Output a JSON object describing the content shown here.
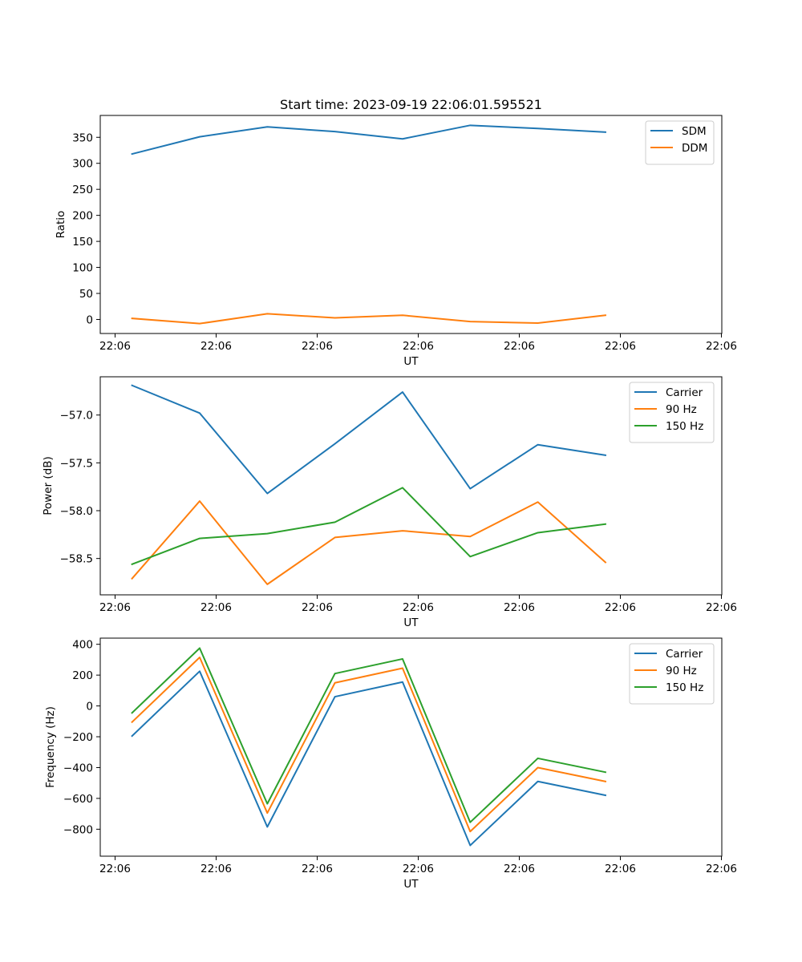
{
  "figure": {
    "title": "Start time: 2023-09-19 22:06:01.595521"
  },
  "chart_data": [
    {
      "type": "line",
      "title": "Start time: 2023-09-19 22:06:01.595521",
      "xlabel": "UT",
      "ylabel": "Ratio",
      "x_tick_labels": [
        "22:06",
        "22:06",
        "22:06",
        "22:06",
        "22:06",
        "22:06",
        "22:06"
      ],
      "y_ticks": [
        0,
        50,
        100,
        150,
        200,
        250,
        300,
        350
      ],
      "ylim": [
        -27,
        392
      ],
      "x": [
        0,
        1,
        2,
        3,
        4,
        5,
        6,
        7
      ],
      "xlim": [
        -0.47,
        8.72
      ],
      "legend_position": "top-right",
      "grid": false,
      "series": [
        {
          "name": "SDM",
          "color": "#1f77b4",
          "values": [
            318,
            351,
            370,
            361,
            347,
            373,
            367,
            360
          ]
        },
        {
          "name": "DDM",
          "color": "#ff7f0e",
          "values": [
            2,
            -8,
            11,
            3,
            8,
            -4,
            -7,
            8
          ]
        }
      ]
    },
    {
      "type": "line",
      "title": "",
      "xlabel": "UT",
      "ylabel": "Power (dB)",
      "x_tick_labels": [
        "22:06",
        "22:06",
        "22:06",
        "22:06",
        "22:06",
        "22:06",
        "22:06"
      ],
      "y_ticks": [
        -58.5,
        -58.0,
        -57.5,
        -57.0
      ],
      "y_tick_labels": [
        "−58.5",
        "−58.0",
        "−57.5",
        "−57.0"
      ],
      "ylim": [
        -58.88,
        -56.6
      ],
      "x": [
        0,
        1,
        2,
        3,
        4,
        5,
        6,
        7
      ],
      "xlim": [
        -0.47,
        8.72
      ],
      "legend_position": "top-right",
      "grid": false,
      "series": [
        {
          "name": "Carrier",
          "color": "#1f77b4",
          "values": [
            -56.69,
            -56.98,
            -57.82,
            -57.3,
            -56.76,
            -57.77,
            -57.31,
            -57.42
          ]
        },
        {
          "name": "90 Hz",
          "color": "#ff7f0e",
          "values": [
            -58.71,
            -57.9,
            -58.77,
            -58.28,
            -58.21,
            -58.27,
            -57.91,
            -58.54
          ]
        },
        {
          "name": "150 Hz",
          "color": "#2ca02c",
          "values": [
            -58.56,
            -58.29,
            -58.24,
            -58.12,
            -57.76,
            -58.48,
            -58.23,
            -58.14
          ]
        }
      ]
    },
    {
      "type": "line",
      "title": "",
      "xlabel": "UT",
      "ylabel": "Frequency (Hz)",
      "x_tick_labels": [
        "22:06",
        "22:06",
        "22:06",
        "22:06",
        "22:06",
        "22:06",
        "22:06"
      ],
      "y_ticks": [
        -800,
        -600,
        -400,
        -200,
        0,
        200,
        400
      ],
      "y_tick_labels": [
        "−800",
        "−600",
        "−400",
        "−200",
        "0",
        "200",
        "400"
      ],
      "ylim": [
        -975,
        440
      ],
      "x": [
        0,
        1,
        2,
        3,
        4,
        5,
        6,
        7
      ],
      "xlim": [
        -0.47,
        8.72
      ],
      "legend_position": "top-right",
      "grid": false,
      "series": [
        {
          "name": "Carrier",
          "color": "#1f77b4",
          "values": [
            -195,
            225,
            -785,
            60,
            155,
            -905,
            -490,
            -580
          ]
        },
        {
          "name": "90 Hz",
          "color": "#ff7f0e",
          "values": [
            -105,
            315,
            -695,
            150,
            245,
            -815,
            -400,
            -490
          ]
        },
        {
          "name": "150 Hz",
          "color": "#2ca02c",
          "values": [
            -45,
            375,
            -635,
            210,
            305,
            -755,
            -340,
            -430
          ]
        }
      ]
    }
  ]
}
